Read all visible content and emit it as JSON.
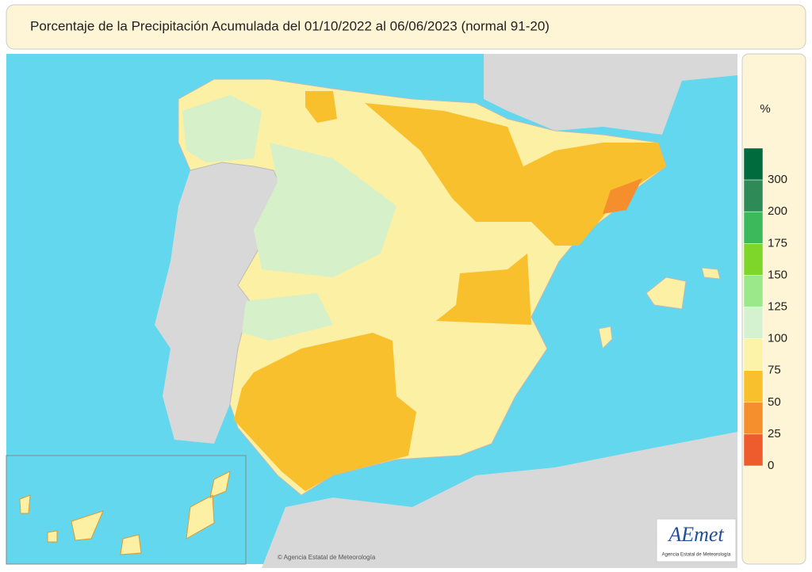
{
  "header": {
    "title": "Porcentaje de la Precipitación Acumulada del 01/10/2022 al 06/06/2023 (normal 91-20)"
  },
  "legend": {
    "title": "%",
    "ticks": [
      300,
      200,
      175,
      150,
      125,
      100,
      75,
      50,
      25,
      0
    ],
    "colors": [
      "#006b3c",
      "#2e8b57",
      "#3cb95a",
      "#7fd62b",
      "#9be88a",
      "#d4f2cf",
      "#fcf3a8",
      "#f8c02c",
      "#f58f2e",
      "#ee5b2c"
    ]
  },
  "credit": "© Agencia Estatal de Meteorología",
  "logo": {
    "name": "AEmet",
    "subtitle": "Agencia Estatal de Meteorología"
  }
}
